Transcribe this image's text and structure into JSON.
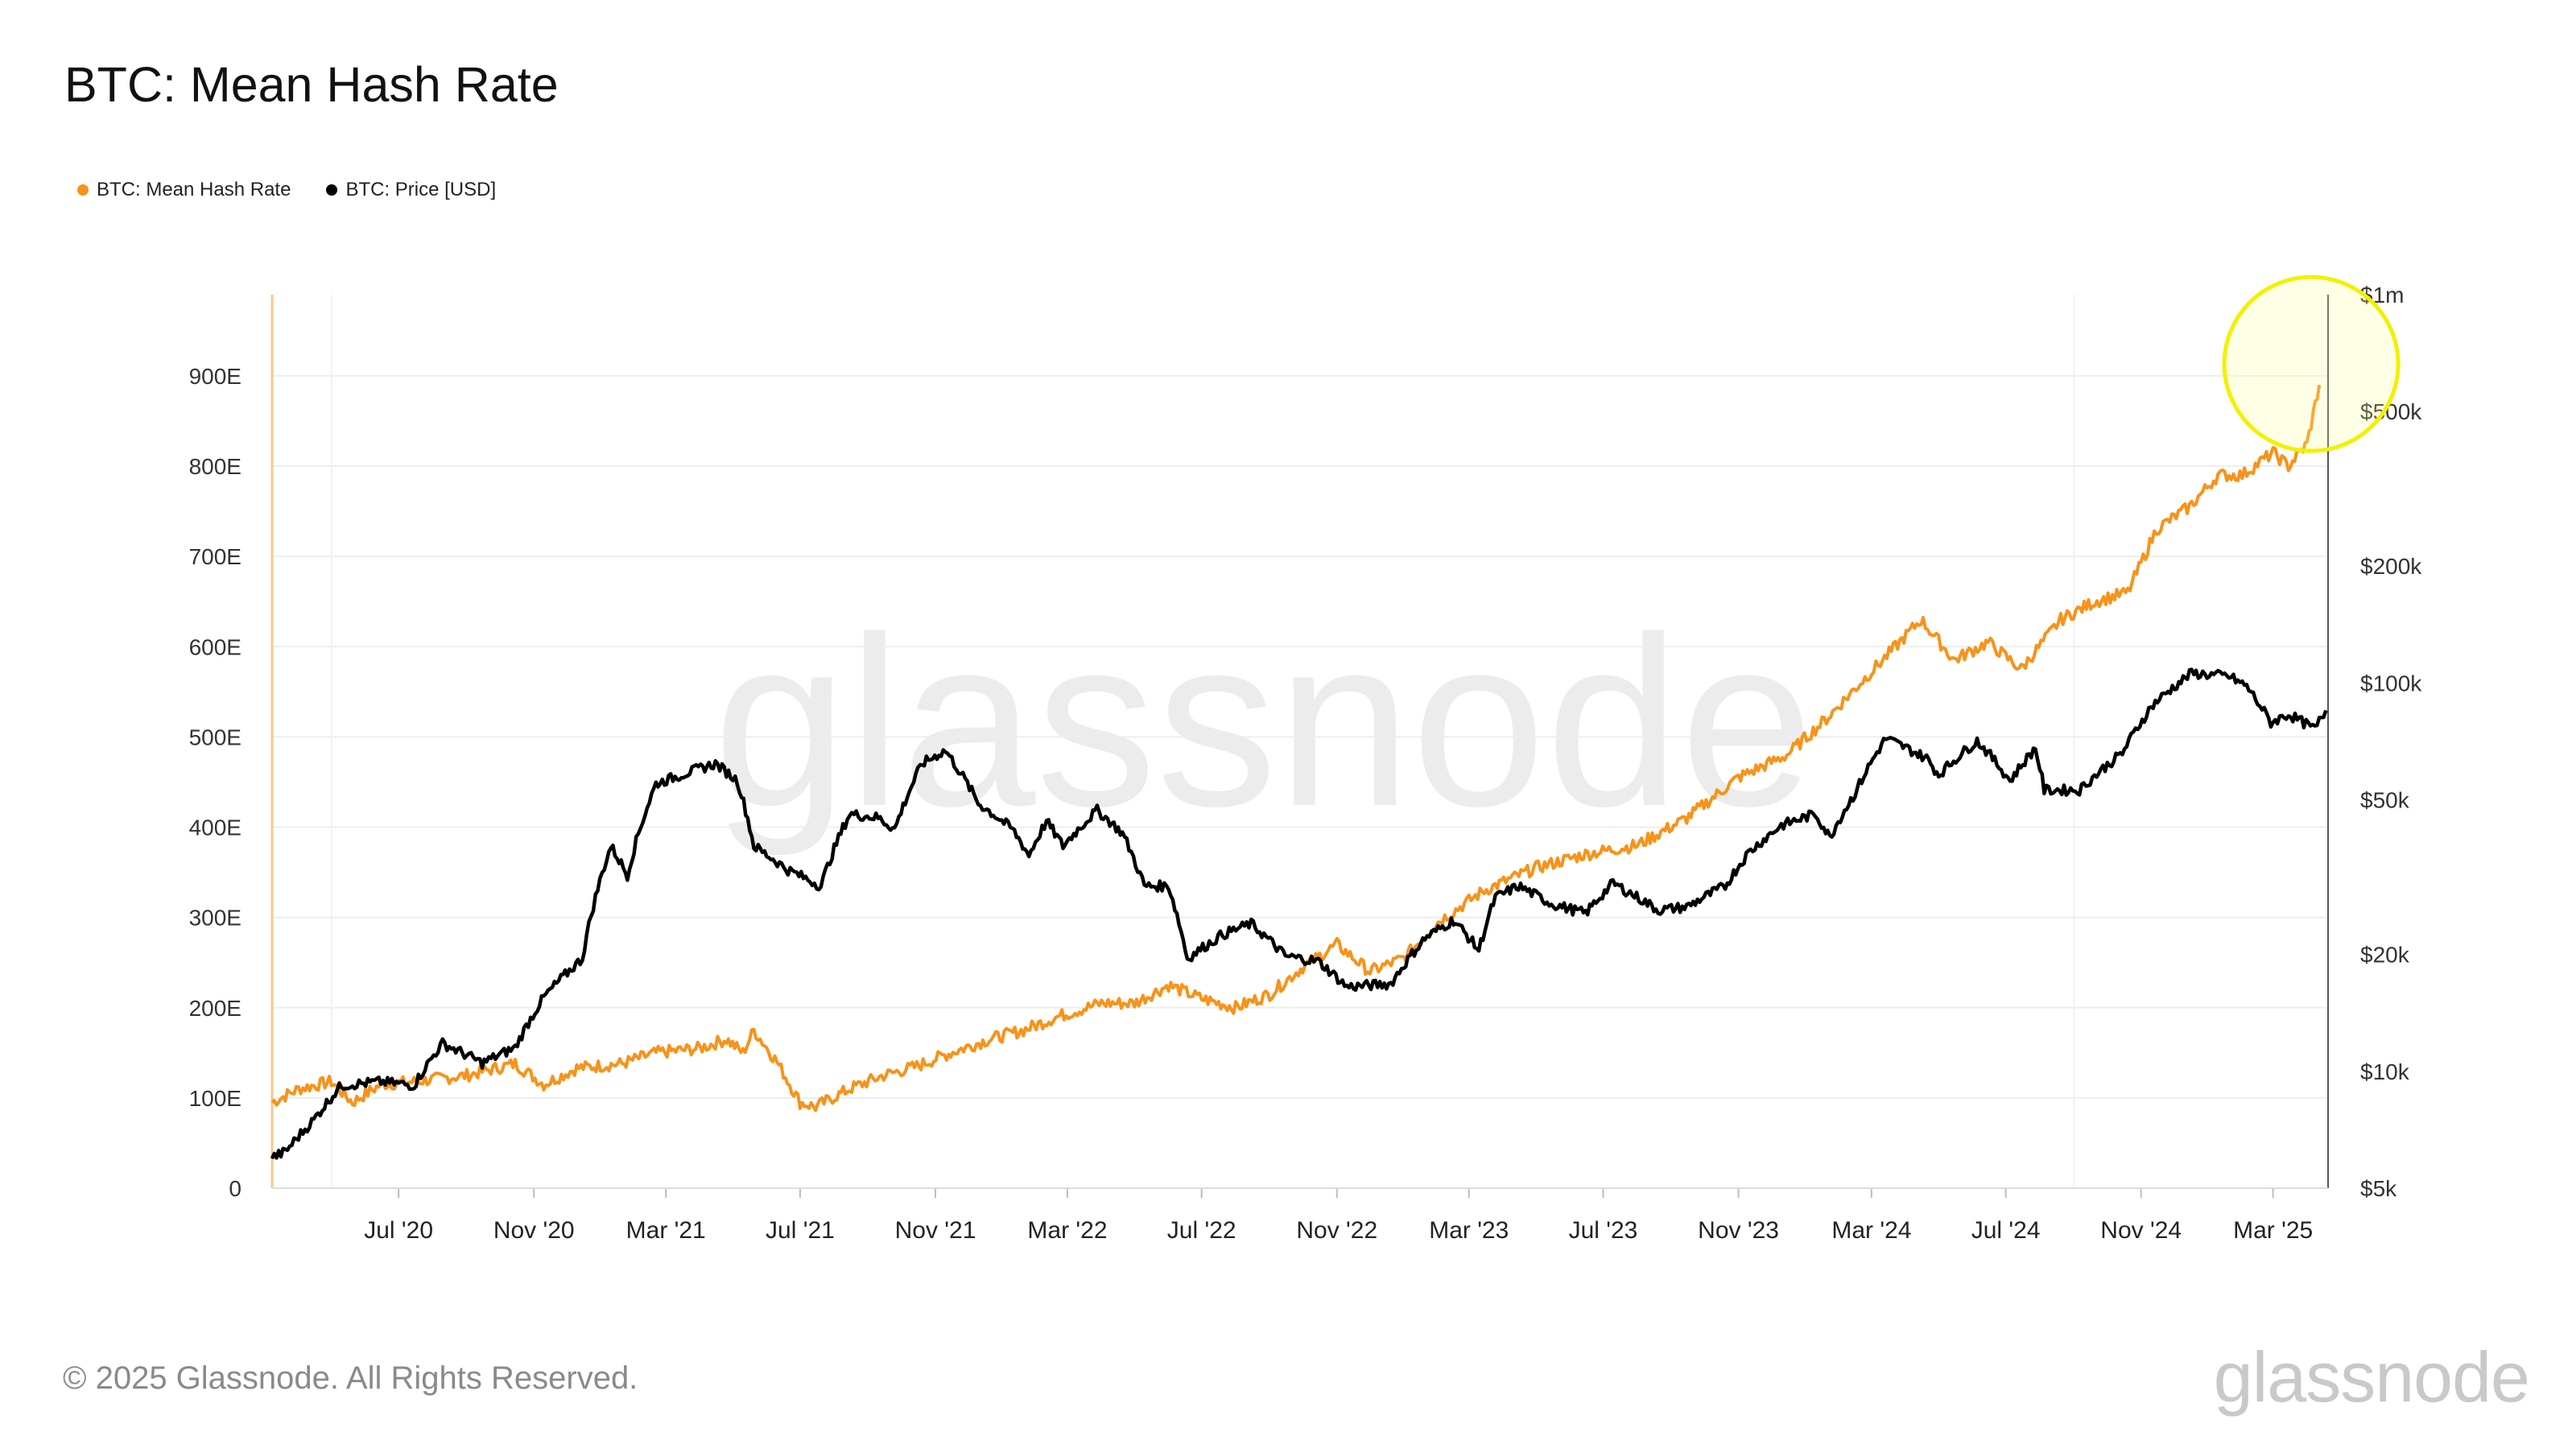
{
  "title": "BTC: Mean Hash Rate",
  "legend": [
    {
      "label": "BTC: Mean Hash Rate",
      "color": "#f7931a"
    },
    {
      "label": "BTC: Price [USD]",
      "color": "#000000"
    }
  ],
  "footer": "© 2025 Glassnode. All Rights Reserved.",
  "brand": "glassnode",
  "watermark": "glassnode",
  "highlight": {
    "shape": "circle",
    "color": "#f3f000",
    "marks": "latest hash rate peak",
    "x": "2025-04-12",
    "y": 890
  },
  "chart_data": {
    "type": "line",
    "title": "BTC: Mean Hash Rate",
    "x_ticks": [
      "Jul '20",
      "Nov '20",
      "Mar '21",
      "Jul '21",
      "Nov '21",
      "Mar '22",
      "Jul '22",
      "Nov '22",
      "Mar '23",
      "Jul '23",
      "Nov '23",
      "Mar '24",
      "Jul '24",
      "Nov '24",
      "Mar '25"
    ],
    "x_tick_dates": [
      "2020-07-01",
      "2020-11-01",
      "2021-03-01",
      "2021-07-01",
      "2021-11-01",
      "2022-03-01",
      "2022-07-01",
      "2022-11-01",
      "2023-03-01",
      "2023-07-01",
      "2023-11-01",
      "2024-03-01",
      "2024-07-01",
      "2024-11-01",
      "2025-03-01"
    ],
    "x_range": [
      "2020-03-08",
      "2025-04-20"
    ],
    "y_left": {
      "label": "",
      "range": [
        0,
        990
      ],
      "ticks": [
        0,
        100,
        200,
        300,
        400,
        500,
        600,
        700,
        800,
        900
      ],
      "tick_labels": [
        "0",
        "100E",
        "200E",
        "300E",
        "400E",
        "500E",
        "600E",
        "700E",
        "800E",
        "900E"
      ]
    },
    "y_right": {
      "label": "",
      "scale": "log",
      "range": [
        5000,
        1000000
      ],
      "ticks": [
        5000,
        10000,
        20000,
        50000,
        100000,
        200000,
        500000,
        1000000
      ],
      "tick_labels": [
        "$5k",
        "$10k",
        "$20k",
        "$50k",
        "$100k",
        "$200k",
        "$500k",
        "$1m"
      ]
    },
    "series": [
      {
        "name": "BTC: Mean Hash Rate",
        "axis": "left",
        "unit": "EH/s",
        "color": "#f7931a",
        "points": [
          [
            "2020-03-08",
            95
          ],
          [
            "2020-04-01",
            110
          ],
          [
            "2020-05-01",
            118
          ],
          [
            "2020-05-20",
            95
          ],
          [
            "2020-06-15",
            115
          ],
          [
            "2020-07-15",
            118
          ],
          [
            "2020-09-01",
            125
          ],
          [
            "2020-10-15",
            138
          ],
          [
            "2020-11-10",
            115
          ],
          [
            "2020-12-10",
            133
          ],
          [
            "2021-01-20",
            138
          ],
          [
            "2021-02-20",
            150
          ],
          [
            "2021-04-01",
            155
          ],
          [
            "2021-04-25",
            165
          ],
          [
            "2021-05-10",
            150
          ],
          [
            "2021-05-20",
            175
          ],
          [
            "2021-06-10",
            140
          ],
          [
            "2021-07-01",
            95
          ],
          [
            "2021-07-15",
            90
          ],
          [
            "2021-08-15",
            110
          ],
          [
            "2021-09-15",
            125
          ],
          [
            "2021-10-15",
            135
          ],
          [
            "2021-11-15",
            150
          ],
          [
            "2021-12-20",
            165
          ],
          [
            "2022-01-20",
            175
          ],
          [
            "2022-02-20",
            190
          ],
          [
            "2022-04-01",
            205
          ],
          [
            "2022-05-01",
            205
          ],
          [
            "2022-06-01",
            225
          ],
          [
            "2022-07-01",
            210
          ],
          [
            "2022-08-01",
            200
          ],
          [
            "2022-09-01",
            215
          ],
          [
            "2022-10-01",
            245
          ],
          [
            "2022-11-01",
            270
          ],
          [
            "2022-12-01",
            240
          ],
          [
            "2023-01-01",
            255
          ],
          [
            "2023-02-01",
            295
          ],
          [
            "2023-03-15",
            330
          ],
          [
            "2023-05-01",
            355
          ],
          [
            "2023-06-15",
            370
          ],
          [
            "2023-08-01",
            380
          ],
          [
            "2023-09-15",
            410
          ],
          [
            "2023-11-01",
            455
          ],
          [
            "2023-12-15",
            480
          ],
          [
            "2024-01-20",
            520
          ],
          [
            "2024-02-20",
            560
          ],
          [
            "2024-03-15",
            590
          ],
          [
            "2024-04-15",
            630
          ],
          [
            "2024-05-15",
            585
          ],
          [
            "2024-06-15",
            605
          ],
          [
            "2024-07-15",
            575
          ],
          [
            "2024-08-20",
            630
          ],
          [
            "2024-09-20",
            650
          ],
          [
            "2024-10-20",
            660
          ],
          [
            "2024-11-15",
            730
          ],
          [
            "2024-12-15",
            755
          ],
          [
            "2025-01-10",
            790
          ],
          [
            "2025-02-01",
            790
          ],
          [
            "2025-03-01",
            815
          ],
          [
            "2025-03-15",
            800
          ],
          [
            "2025-04-01",
            825
          ],
          [
            "2025-04-12",
            890
          ]
        ]
      },
      {
        "name": "BTC: Price [USD]",
        "axis": "right",
        "unit": "USD",
        "color": "#000000",
        "points": [
          [
            "2020-03-08",
            6000
          ],
          [
            "2020-03-20",
            6200
          ],
          [
            "2020-04-15",
            7500
          ],
          [
            "2020-05-10",
            9200
          ],
          [
            "2020-06-15",
            9400
          ],
          [
            "2020-07-15",
            9200
          ],
          [
            "2020-08-10",
            11800
          ],
          [
            "2020-09-15",
            10500
          ],
          [
            "2020-10-15",
            11500
          ],
          [
            "2020-11-10",
            15500
          ],
          [
            "2020-12-15",
            19500
          ],
          [
            "2021-01-10",
            38000
          ],
          [
            "2021-01-25",
            32000
          ],
          [
            "2021-02-20",
            55000
          ],
          [
            "2021-03-15",
            58000
          ],
          [
            "2021-04-15",
            62000
          ],
          [
            "2021-05-05",
            56000
          ],
          [
            "2021-05-20",
            38000
          ],
          [
            "2021-06-20",
            33000
          ],
          [
            "2021-07-20",
            30000
          ],
          [
            "2021-08-15",
            46000
          ],
          [
            "2021-09-10",
            45000
          ],
          [
            "2021-09-25",
            42000
          ],
          [
            "2021-10-20",
            62000
          ],
          [
            "2021-11-10",
            67000
          ],
          [
            "2021-12-10",
            49000
          ],
          [
            "2022-01-10",
            42000
          ],
          [
            "2022-01-25",
            36000
          ],
          [
            "2022-02-10",
            44000
          ],
          [
            "2022-02-25",
            38000
          ],
          [
            "2022-03-28",
            47000
          ],
          [
            "2022-04-20",
            41000
          ],
          [
            "2022-05-10",
            30000
          ],
          [
            "2022-06-01",
            30000
          ],
          [
            "2022-06-18",
            19500
          ],
          [
            "2022-07-20",
            22500
          ],
          [
            "2022-08-15",
            24000
          ],
          [
            "2022-09-15",
            19800
          ],
          [
            "2022-10-15",
            19200
          ],
          [
            "2022-11-10",
            16500
          ],
          [
            "2022-12-20",
            16800
          ],
          [
            "2023-01-20",
            22000
          ],
          [
            "2023-02-15",
            24500
          ],
          [
            "2023-03-10",
            20500
          ],
          [
            "2023-03-25",
            28000
          ],
          [
            "2023-04-15",
            30000
          ],
          [
            "2023-05-15",
            27000
          ],
          [
            "2023-06-15",
            25500
          ],
          [
            "2023-07-10",
            30500
          ],
          [
            "2023-08-20",
            26000
          ],
          [
            "2023-09-15",
            26500
          ],
          [
            "2023-10-20",
            30000
          ],
          [
            "2023-11-10",
            36500
          ],
          [
            "2023-12-10",
            43000
          ],
          [
            "2024-01-10",
            46000
          ],
          [
            "2024-01-23",
            40000
          ],
          [
            "2024-02-15",
            52000
          ],
          [
            "2024-03-14",
            72000
          ],
          [
            "2024-04-20",
            64000
          ],
          [
            "2024-05-01",
            58000
          ],
          [
            "2024-06-05",
            71000
          ],
          [
            "2024-07-05",
            56000
          ],
          [
            "2024-07-28",
            68000
          ],
          [
            "2024-08-05",
            53000
          ],
          [
            "2024-09-06",
            53000
          ],
          [
            "2024-10-15",
            66000
          ],
          [
            "2024-11-12",
            88000
          ],
          [
            "2024-12-17",
            106000
          ],
          [
            "2025-01-20",
            104000
          ],
          [
            "2025-02-05",
            98000
          ],
          [
            "2025-02-27",
            79000
          ],
          [
            "2025-03-15",
            83000
          ],
          [
            "2025-04-08",
            76000
          ],
          [
            "2025-04-18",
            85000
          ]
        ]
      }
    ],
    "grid": true,
    "legend_position": "top-left"
  }
}
